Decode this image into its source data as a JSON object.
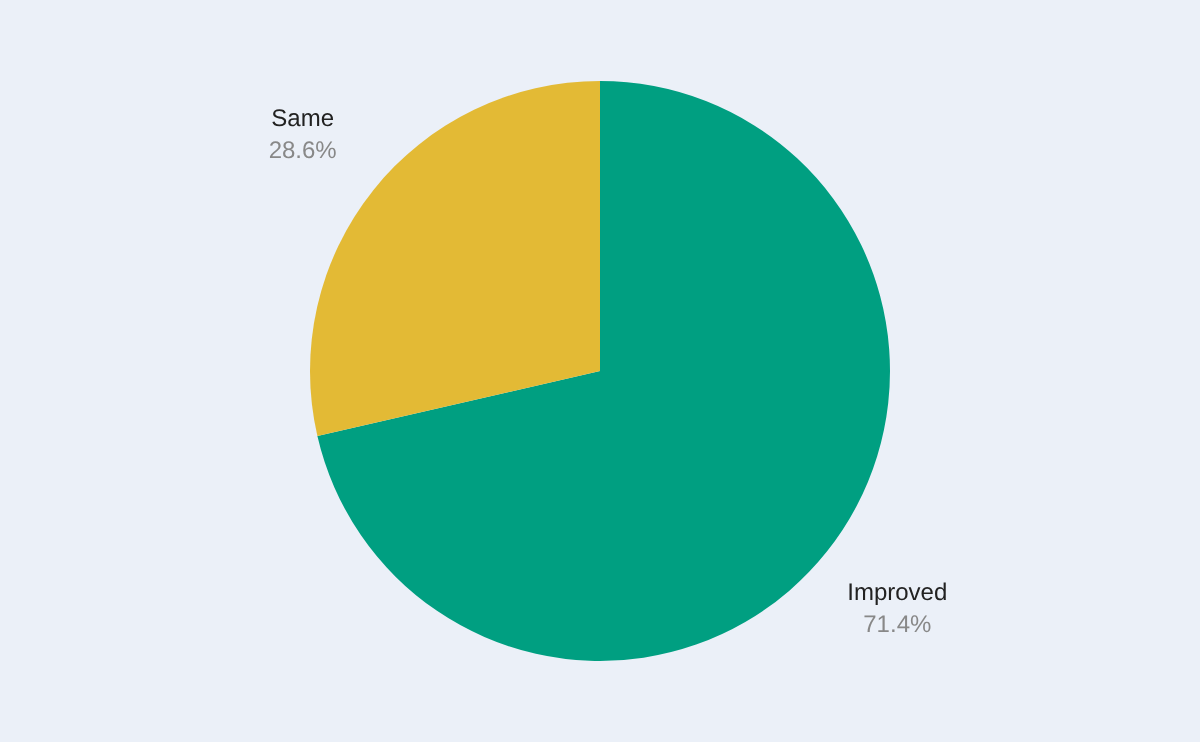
{
  "chart_data": {
    "type": "pie",
    "categories": [
      "Improved",
      "Same"
    ],
    "values": [
      71.4,
      28.6
    ],
    "colors": [
      "#009f81",
      "#e3ba35"
    ],
    "value_labels": [
      "71.4%",
      "28.6%"
    ],
    "legend": false
  }
}
